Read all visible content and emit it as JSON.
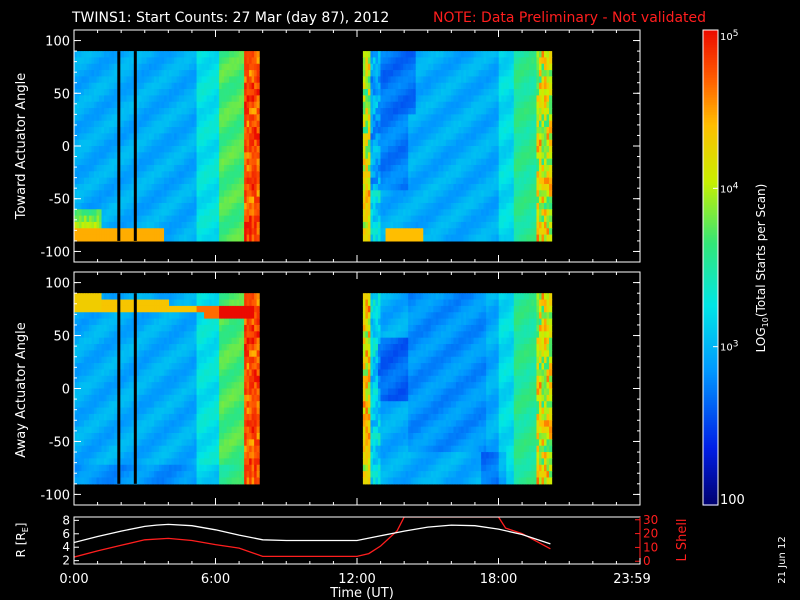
{
  "title": "TWINS1: Start Counts: 27 Mar (day  87), 2012",
  "note": "NOTE: Data Preliminary - Not validated",
  "date_stamp": "21 Jun 12",
  "colors": {
    "note": "#ff1e1e",
    "frame": "#ffffff",
    "lshell": "#ff1e1e",
    "radius": "#ffffff"
  },
  "chart_data": [
    {
      "type": "heatmap",
      "panel": "top",
      "ylabel": "Toward Actuator Angle",
      "ylim": [
        -110,
        110
      ],
      "yticks": [
        "100",
        "50",
        "0",
        "-50",
        "-100"
      ],
      "xlim": [
        0,
        24
      ],
      "data_blocks_hours": [
        [
          0,
          7.85
        ],
        [
          12.25,
          20.25
        ]
      ],
      "black_stripes_hours": [
        1.9,
        2.6
      ],
      "angle_range": [
        -90,
        90
      ]
    },
    {
      "type": "heatmap",
      "panel": "bottom",
      "ylabel": "Away Actuator Angle",
      "ylim": [
        -110,
        110
      ],
      "yticks": [
        "100",
        "50",
        "0",
        "-50",
        "-100"
      ],
      "xlim": [
        0,
        24
      ],
      "data_blocks_hours": [
        [
          0,
          7.85
        ],
        [
          12.25,
          20.25
        ]
      ],
      "black_stripes_hours": [
        1.9,
        2.6
      ],
      "angle_range": [
        -90,
        90
      ]
    },
    {
      "type": "line",
      "panel": "orbit",
      "xlabel": "Time (UT)",
      "xticks": [
        "0:00",
        "6:00",
        "12:00",
        "18:00",
        "23:59"
      ],
      "ylabel_left": "R [R",
      "ylabel_left_sub": "E",
      "ylabel_left_end": "]",
      "ylabel_right": "L Shell",
      "yticks_left": [
        "8",
        "6",
        "4",
        "2"
      ],
      "yticks_right": [
        "30",
        "20",
        "10",
        "0"
      ],
      "series": [
        {
          "name": "R",
          "axis": "left",
          "ylim": [
            1.5,
            8.5
          ],
          "x": [
            0,
            1,
            2,
            3,
            3.5,
            4,
            5,
            6,
            7,
            8,
            9,
            10,
            11,
            12,
            13,
            14,
            15,
            16,
            17,
            18,
            19,
            20.2
          ],
          "y": [
            4.7,
            5.6,
            6.4,
            7.1,
            7.3,
            7.4,
            7.2,
            6.6,
            5.8,
            5.1,
            5.0,
            5.0,
            5.0,
            5.0,
            5.7,
            6.4,
            7.0,
            7.3,
            7.2,
            6.7,
            5.9,
            4.5
          ]
        },
        {
          "name": "L Shell",
          "axis": "right",
          "ylim": [
            -2,
            32
          ],
          "x": [
            0,
            1,
            2,
            3,
            4,
            5,
            6,
            7,
            8,
            9,
            10,
            11,
            12,
            12.5,
            13,
            13.7,
            14.0,
            18.0,
            18.3,
            19,
            20.2
          ],
          "y": [
            3.0,
            7.5,
            11.5,
            15.5,
            16.5,
            15.0,
            12.0,
            9.5,
            3.5,
            3.5,
            3.5,
            3.5,
            3.5,
            5.5,
            11.0,
            22.0,
            32.0,
            32.0,
            24.0,
            20.0,
            9.0
          ]
        }
      ]
    }
  ],
  "colorbar": {
    "label_prefix": "LOG",
    "label_sub": "10",
    "label_suffix": "(Total Starts per Scan)",
    "ticks": [
      {
        "base": "10",
        "exp": "5"
      },
      {
        "base": "10",
        "exp": "4"
      },
      {
        "base": "10",
        "exp": "3"
      },
      {
        "base": "100",
        "exp": ""
      }
    ],
    "range_log": [
      2,
      5
    ]
  }
}
